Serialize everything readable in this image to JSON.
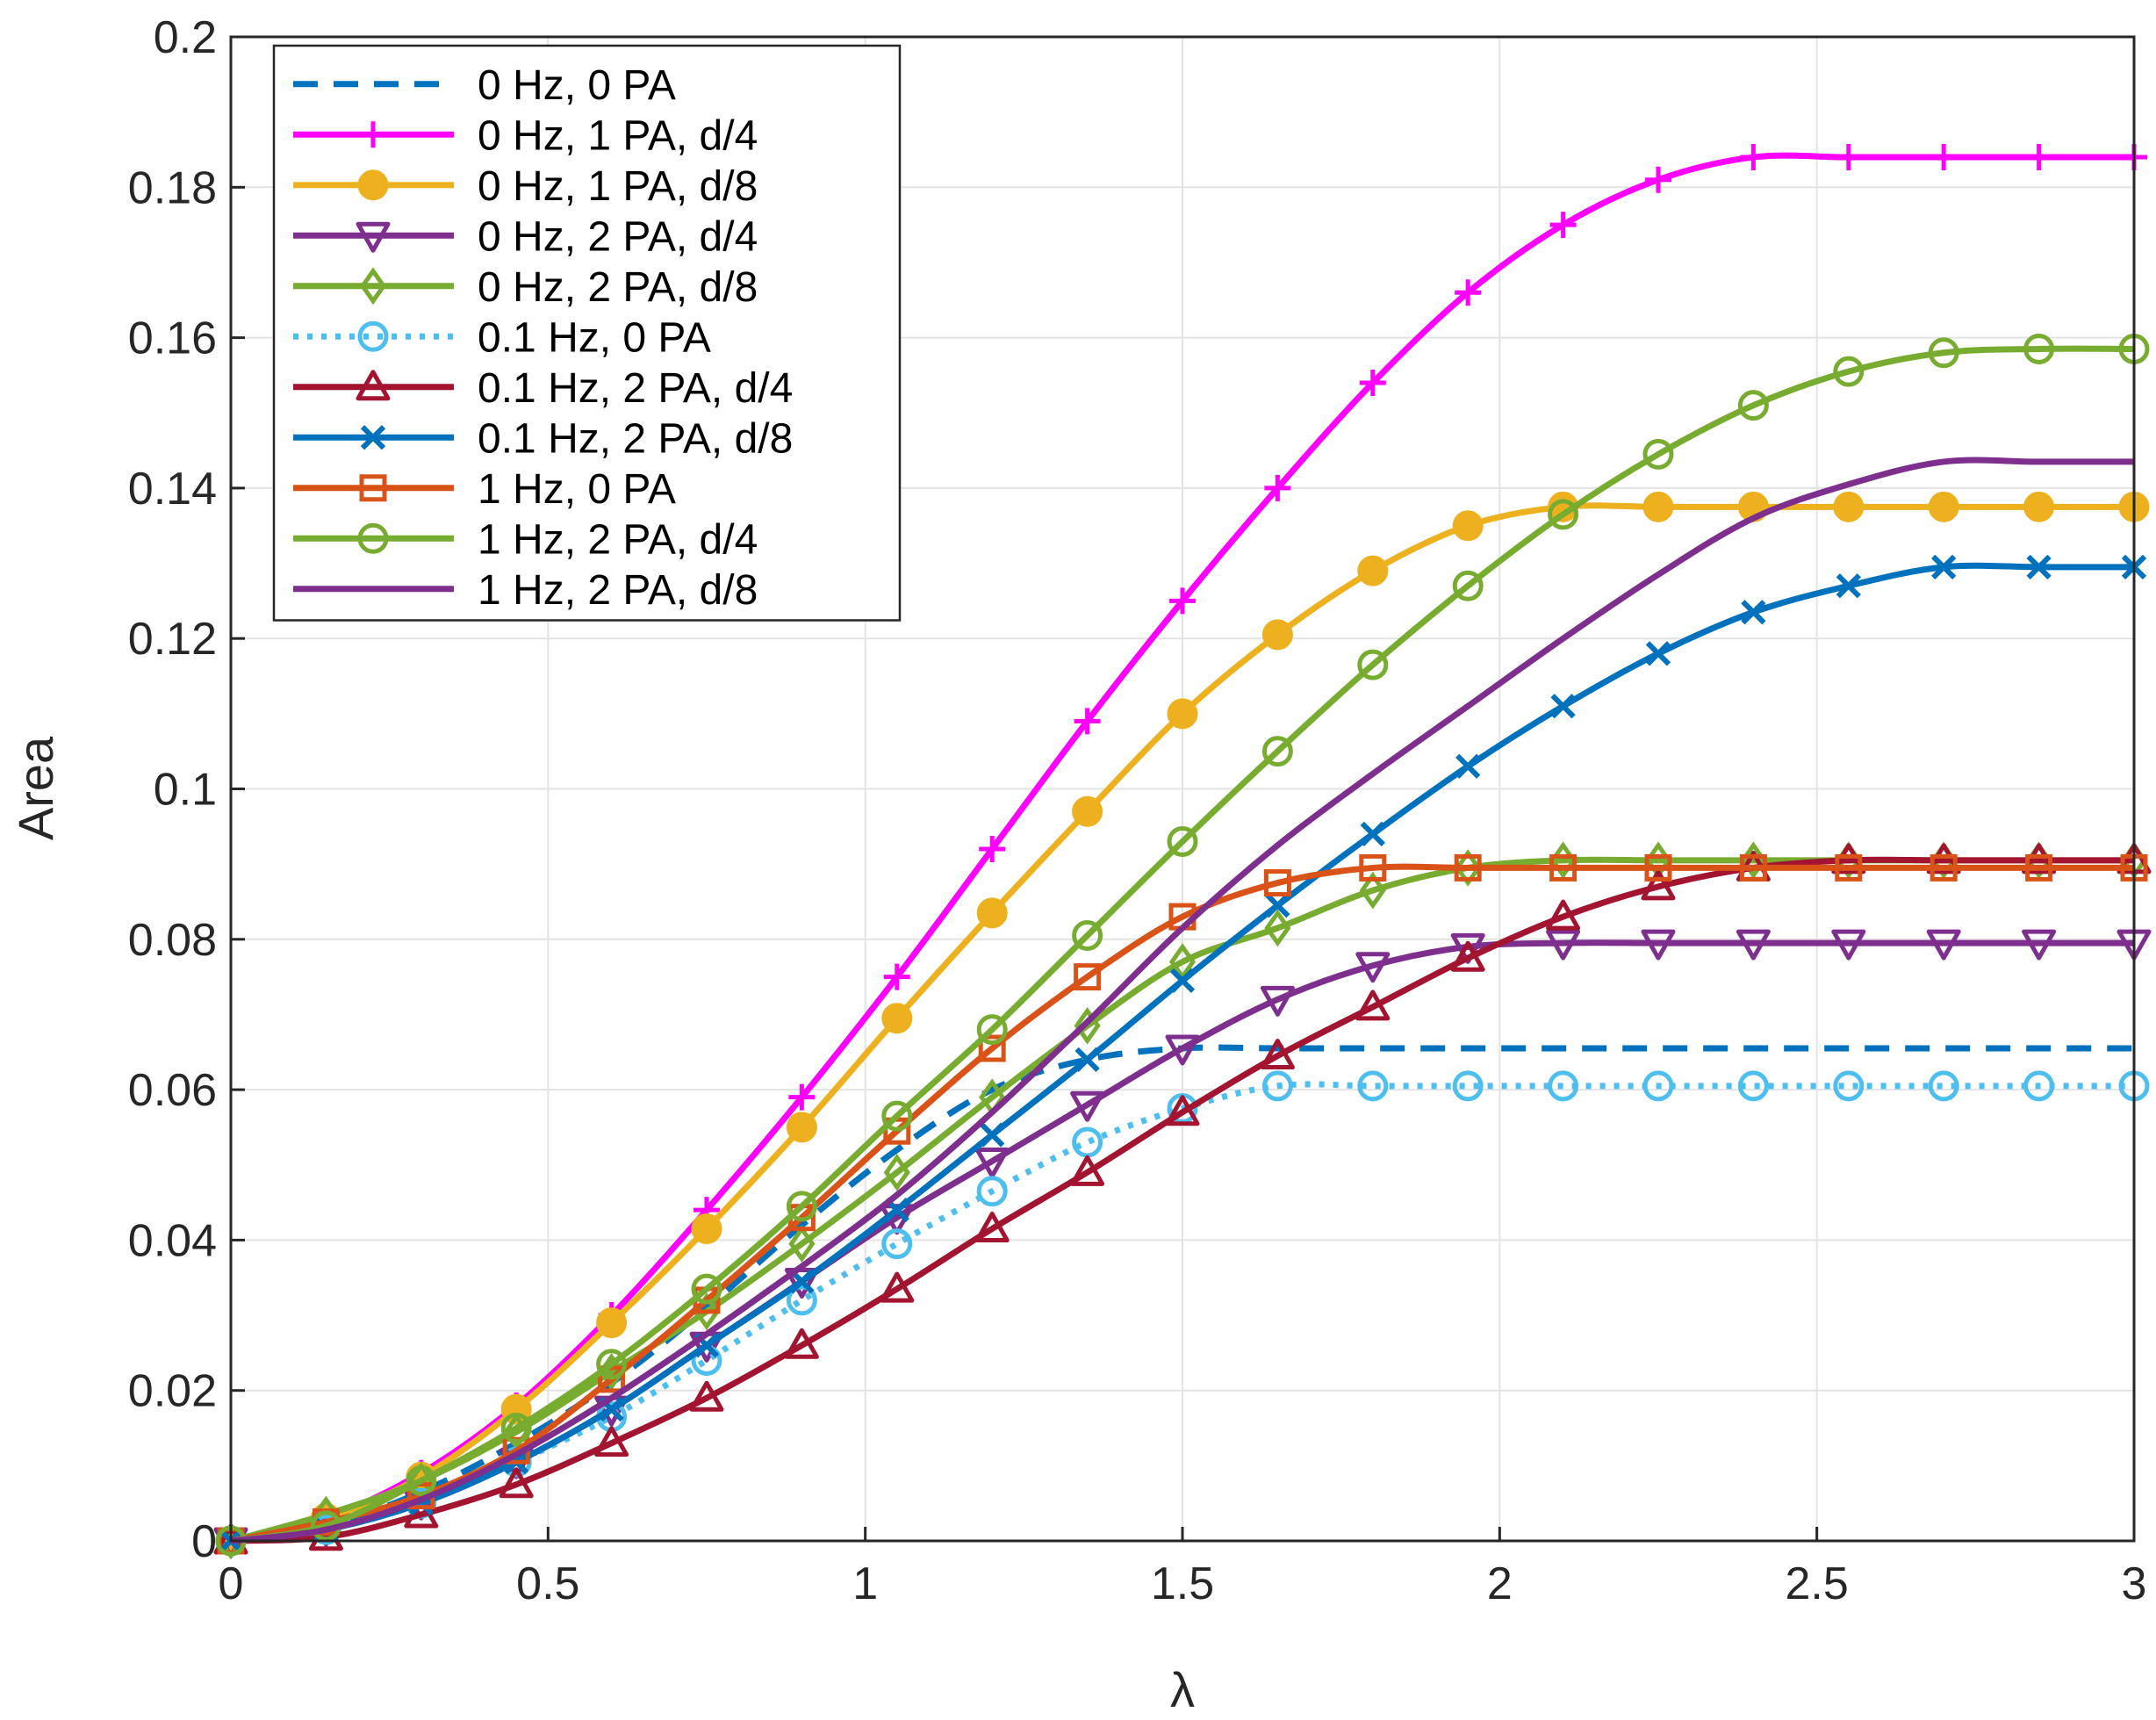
{
  "chart_data": {
    "type": "line",
    "title": "",
    "xlabel": "λ",
    "ylabel": "Area",
    "xlim": [
      0,
      3
    ],
    "ylim": [
      0,
      0.2
    ],
    "grid": true,
    "legend_position": "top-left",
    "xticks": [
      0,
      0.5,
      1,
      1.5,
      2,
      2.5,
      3
    ],
    "xtick_labels": [
      "0",
      "0.5",
      "1",
      "1.5",
      "2",
      "2.5",
      "3"
    ],
    "yticks": [
      0,
      0.02,
      0.04,
      0.06,
      0.08,
      0.1,
      0.12,
      0.14,
      0.16,
      0.18,
      0.2
    ],
    "ytick_labels": [
      "0",
      "0.02",
      "0.04",
      "0.06",
      "0.08",
      "0.1",
      "0.12",
      "0.14",
      "0.16",
      "0.18",
      "0.2"
    ],
    "x": [
      0,
      0.15,
      0.3,
      0.45,
      0.6,
      0.75,
      0.9,
      1.05,
      1.2,
      1.35,
      1.5,
      1.65,
      1.8,
      1.95,
      2.1,
      2.25,
      2.4,
      2.55,
      2.7,
      2.85,
      3.0
    ],
    "series": [
      {
        "name": "0 Hz, 0 PA",
        "color": "#0072BD",
        "dash": "dashed",
        "marker": "none",
        "values": [
          0,
          0.002,
          0.0065,
          0.013,
          0.021,
          0.031,
          0.042,
          0.052,
          0.06,
          0.064,
          0.0655,
          0.0655,
          0.0655,
          0.0655,
          0.0655,
          0.0655,
          0.0655,
          0.0655,
          0.0655,
          0.0655,
          0.0655
        ]
      },
      {
        "name": "0 Hz, 1 PA, d/4",
        "color": "#FF00FF",
        "dash": "solid",
        "marker": "plus",
        "values": [
          0,
          0.003,
          0.009,
          0.018,
          0.03,
          0.044,
          0.059,
          0.075,
          0.092,
          0.109,
          0.125,
          0.14,
          0.154,
          0.166,
          0.175,
          0.181,
          0.184,
          0.184,
          0.184,
          0.184,
          0.184
        ]
      },
      {
        "name": "0 Hz, 1 PA, d/8",
        "color": "#EDB120",
        "dash": "solid",
        "marker": "circle-filled",
        "values": [
          0,
          0.003,
          0.0085,
          0.0175,
          0.029,
          0.0415,
          0.055,
          0.0695,
          0.0835,
          0.097,
          0.11,
          0.1205,
          0.129,
          0.135,
          0.1375,
          0.1375,
          0.1375,
          0.1375,
          0.1375,
          0.1375,
          0.1375
        ]
      },
      {
        "name": "0 Hz, 2 PA, d/4",
        "color": "#7E2F8E",
        "dash": "solid",
        "marker": "triangle-down",
        "values": [
          0,
          0.0015,
          0.005,
          0.0105,
          0.0175,
          0.026,
          0.0345,
          0.043,
          0.0505,
          0.058,
          0.0655,
          0.072,
          0.0765,
          0.079,
          0.0795,
          0.0795,
          0.0795,
          0.0795,
          0.0795,
          0.0795,
          0.0795
        ]
      },
      {
        "name": "0 Hz, 2 PA, d/8",
        "color": "#77AC30",
        "dash": "solid",
        "marker": "diamond",
        "values": [
          0,
          0.0035,
          0.008,
          0.0145,
          0.0225,
          0.0305,
          0.0395,
          0.049,
          0.059,
          0.0685,
          0.077,
          0.0815,
          0.0865,
          0.0895,
          0.0905,
          0.0905,
          0.0905,
          0.0905,
          0.0905,
          0.0905,
          0.0905
        ]
      },
      {
        "name": "0.1 Hz, 0 PA",
        "color": "#4DBEEE",
        "dash": "dotted",
        "marker": "circle-open",
        "values": [
          0,
          0.0015,
          0.005,
          0.0105,
          0.0165,
          0.024,
          0.032,
          0.0395,
          0.0465,
          0.053,
          0.0575,
          0.0605,
          0.0605,
          0.0605,
          0.0605,
          0.0605,
          0.0605,
          0.0605,
          0.0605,
          0.0605,
          0.0605
        ]
      },
      {
        "name": "0.1 Hz, 2 PA, d/4",
        "color": "#A2142F",
        "dash": "solid",
        "marker": "triangle-up",
        "values": [
          0,
          0.0005,
          0.0035,
          0.0075,
          0.013,
          0.019,
          0.026,
          0.0335,
          0.0415,
          0.049,
          0.057,
          0.0645,
          0.071,
          0.0775,
          0.083,
          0.087,
          0.0895,
          0.0905,
          0.0905,
          0.0905,
          0.0905
        ]
      },
      {
        "name": "0.1 Hz, 2 PA, d/8",
        "color": "#0072BD",
        "dash": "solid",
        "marker": "x",
        "values": [
          0,
          0.0015,
          0.005,
          0.0105,
          0.0175,
          0.026,
          0.0345,
          0.044,
          0.054,
          0.064,
          0.0745,
          0.0845,
          0.094,
          0.103,
          0.111,
          0.118,
          0.1235,
          0.127,
          0.1295,
          0.1295,
          0.1295
        ]
      },
      {
        "name": "1 Hz, 0 PA",
        "color": "#D95319",
        "dash": "solid",
        "marker": "square",
        "values": [
          0,
          0.0025,
          0.006,
          0.012,
          0.0215,
          0.032,
          0.043,
          0.0545,
          0.0655,
          0.075,
          0.083,
          0.0875,
          0.0895,
          0.0895,
          0.0895,
          0.0895,
          0.0895,
          0.0895,
          0.0895,
          0.0895,
          0.0895
        ]
      },
      {
        "name": "1 Hz, 2 PA, d/4",
        "color": "#77AC30",
        "dash": "solid",
        "marker": "circle-open",
        "values": [
          0,
          0.002,
          0.008,
          0.015,
          0.0235,
          0.0335,
          0.0445,
          0.0565,
          0.068,
          0.0805,
          0.093,
          0.105,
          0.1165,
          0.127,
          0.1365,
          0.1445,
          0.151,
          0.1555,
          0.158,
          0.1585,
          0.1585
        ]
      },
      {
        "name": "1 Hz, 2 PA, d/8",
        "color": "#7E2F8E",
        "dash": "solid",
        "marker": "none",
        "values": [
          0,
          0.0015,
          0.0055,
          0.0115,
          0.019,
          0.0275,
          0.0365,
          0.046,
          0.057,
          0.069,
          0.0815,
          0.0925,
          0.102,
          0.111,
          0.12,
          0.1285,
          0.136,
          0.1405,
          0.1435,
          0.1435,
          0.1435
        ]
      }
    ]
  }
}
